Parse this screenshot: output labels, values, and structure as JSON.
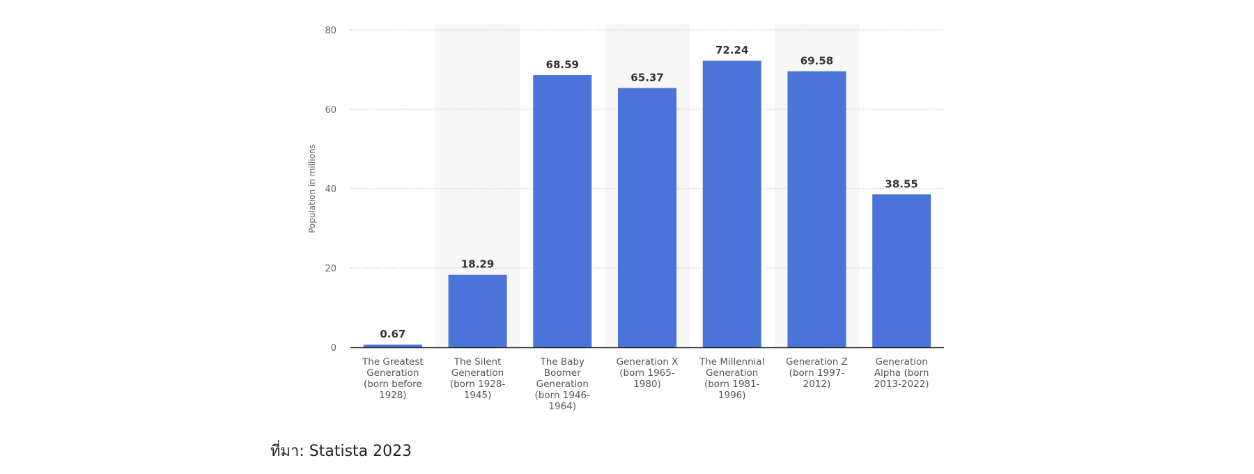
{
  "source_text": "ที่มา: Statista 2023",
  "chart_data": {
    "type": "bar",
    "ylabel": "Population in millions",
    "ylim": [
      0,
      80
    ],
    "yticks": [
      0,
      20,
      40,
      60,
      80
    ],
    "grid": true,
    "categories": [
      [
        "The Greatest",
        "Generation",
        "(born before",
        "1928)"
      ],
      [
        "The Silent",
        "Generation",
        "(born 1928-",
        "1945)"
      ],
      [
        "The Baby",
        "Boomer",
        "Generation",
        "(born 1946-",
        "1964)"
      ],
      [
        "Generation X",
        "(born 1965-",
        "1980)"
      ],
      [
        "The Millennial",
        "Generation",
        "(born 1981-",
        "1996)"
      ],
      [
        "Generation Z",
        "(born 1997-",
        "2012)"
      ],
      [
        "Generation",
        "Alpha (born",
        "2013-2022)"
      ]
    ],
    "values": [
      0.67,
      18.29,
      68.59,
      65.37,
      72.24,
      69.58,
      38.55
    ],
    "bar_color": "#4a74d9",
    "band_color": "#f7f7f7",
    "grid_color": "#c8c8c8"
  }
}
